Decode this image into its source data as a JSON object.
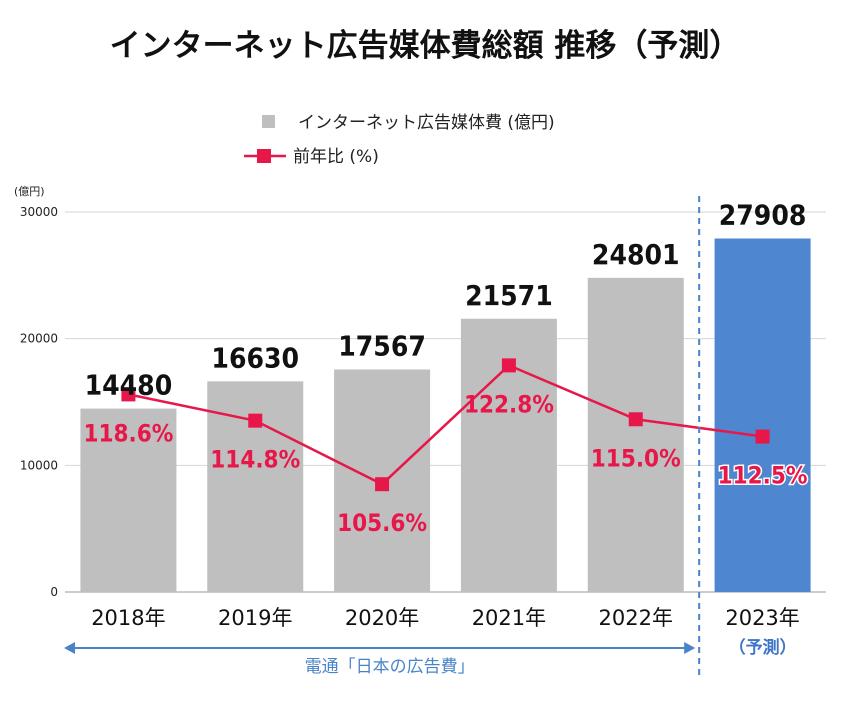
{
  "chart_data": {
    "type": "bar",
    "title": "インターネット広告媒体費総額 推移（予測）",
    "unit_label": "(億円)",
    "categories": [
      "2018年",
      "2019年",
      "2020年",
      "2021年",
      "2022年",
      "2023年"
    ],
    "category_sublabels": [
      "",
      "",
      "",
      "",
      "",
      "（予測）"
    ],
    "series": [
      {
        "name": "インターネット広告媒体費 (億円)",
        "type": "bar",
        "values": [
          14480,
          16630,
          17567,
          21571,
          24801,
          27908
        ],
        "value_labels": [
          "14480",
          "16630",
          "17567",
          "21571",
          "24801",
          "27908"
        ],
        "color": "#bfbfbf",
        "highlight_color": "#4f86d0",
        "highlight_index": 5
      },
      {
        "name": "前年比 (%)",
        "type": "line",
        "values": [
          118.6,
          114.8,
          105.6,
          122.8,
          115.0,
          112.5
        ],
        "value_labels": [
          "118.6%",
          "114.8%",
          "105.6%",
          "122.8%",
          "115.0%",
          "112.5%"
        ],
        "color": "#e8174a",
        "marker": "square"
      }
    ],
    "ylim": [
      0,
      30000
    ],
    "yticks": [
      0,
      10000,
      20000,
      30000
    ],
    "grid": true,
    "legend_position": "top-center",
    "source_label": "電通「日本の広告費」",
    "source_range": [
      "2018年",
      "2022年"
    ],
    "forecast_divider": true
  }
}
